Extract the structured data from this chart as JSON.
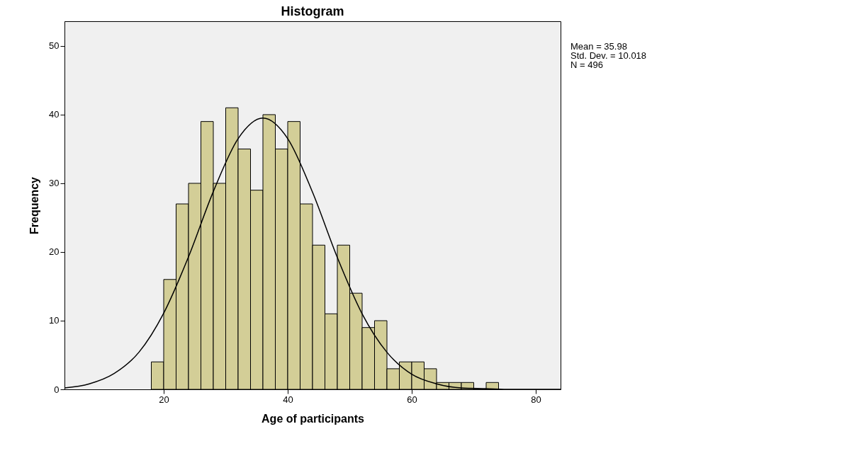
{
  "chart_data": {
    "type": "histogram",
    "title": "Histogram",
    "xlabel": "Age of participants",
    "ylabel": "Frequency",
    "bins": [
      18,
      20,
      22,
      24,
      26,
      28,
      30,
      32,
      34,
      36,
      38,
      40,
      42,
      44,
      46,
      48,
      50,
      52,
      54,
      56,
      58,
      60,
      62,
      64,
      66,
      68,
      70,
      72,
      74
    ],
    "values": [
      4,
      16,
      27,
      30,
      39,
      30,
      41,
      35,
      29,
      40,
      35,
      39,
      27,
      21,
      11,
      21,
      14,
      9,
      10,
      3,
      4,
      4,
      3,
      1,
      1,
      1,
      0,
      1
    ],
    "color": "#d3ce97",
    "series": [
      {
        "type": "line",
        "color": "#000000",
        "x": [
          4,
          8,
          12,
          16,
          20,
          24,
          28,
          32,
          36,
          40,
          44,
          48,
          52,
          56,
          60,
          64,
          68,
          72,
          76,
          80,
          84
        ],
        "values": [
          0.2,
          0.8,
          2.3,
          5.4,
          11.1,
          19.3,
          28.8,
          36.5,
          39.5,
          36.5,
          28.7,
          19.2,
          11.0,
          5.4,
          2.2,
          0.8,
          0.2,
          0.1,
          0,
          0,
          0
        ]
      }
    ],
    "xlim": [
      4,
      84
    ],
    "xticks": [
      20,
      40,
      60,
      80
    ],
    "ylim": [
      0,
      53.6
    ],
    "yticks": [
      0,
      10,
      20,
      30,
      40,
      50
    ],
    "grid": false,
    "annotations": [
      "Mean = 35.98",
      "Std. Dev. = 10.018",
      "N = 496"
    ]
  }
}
